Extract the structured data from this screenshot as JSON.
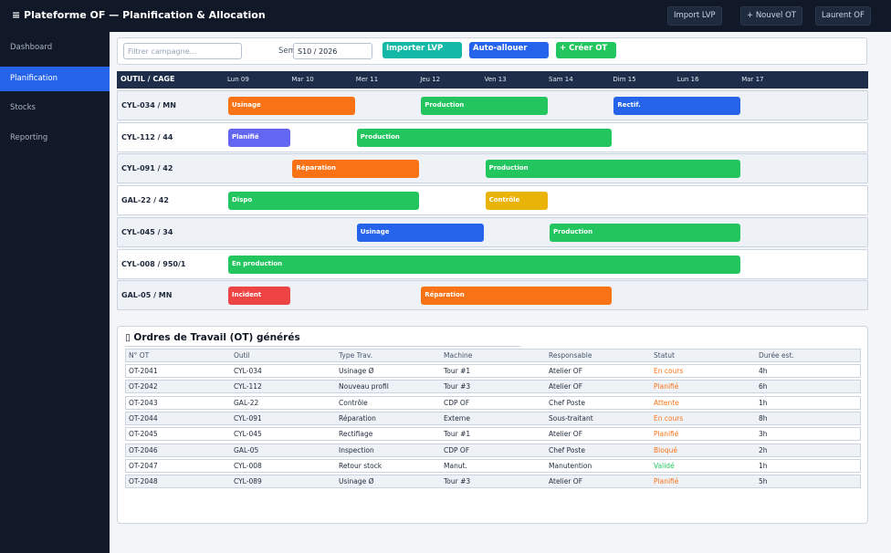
{
  "app": {
    "title": "≡  Plateforme OF  —  Planification & Allocation",
    "buttons": [
      "Import LVP",
      "+ Nouvel OT",
      "Laurent OF"
    ]
  },
  "sidebar": {
    "items": [
      {
        "label": "Dashboard",
        "active": false
      },
      {
        "label": "Planification",
        "active": true
      },
      {
        "label": "Stocks",
        "active": false
      },
      {
        "label": "Reporting",
        "active": false
      }
    ]
  },
  "toolbar": {
    "filter_placeholder": "Filtrer campagne...",
    "filter_value": "",
    "week_label": "Semaine:",
    "week_value": "S10 / 2026",
    "import_label": "Importer LVP",
    "auto_label": "Auto-allouer",
    "create_label": "+ Créer OT"
  },
  "gantt": {
    "header_label": "OUTIL / CAGE",
    "days": [
      "Lun 09",
      "Mar 10",
      "Mer 11",
      "Jeu 12",
      "Ven 13",
      "Sam 14",
      "Dim 15",
      "Lun 16",
      "Mar 17"
    ],
    "rows": [
      {
        "label": "CYL-034 / MN",
        "bars": [
          {
            "label": "Usinage",
            "start": 0,
            "span": 2,
            "color": "#f97316"
          },
          {
            "label": "Production",
            "start": 3,
            "span": 2,
            "color": "#22c55e"
          },
          {
            "label": "Rectif.",
            "start": 6,
            "span": 2,
            "color": "#2563eb"
          }
        ]
      },
      {
        "label": "CYL-112 / 44",
        "bars": [
          {
            "label": "Planifié",
            "start": 0,
            "span": 1,
            "color": "#6366f1"
          },
          {
            "label": "Production",
            "start": 2,
            "span": 4,
            "color": "#22c55e"
          }
        ]
      },
      {
        "label": "CYL-091 / 42",
        "bars": [
          {
            "label": "Réparation",
            "start": 1,
            "span": 2,
            "color": "#f97316"
          },
          {
            "label": "Production",
            "start": 4,
            "span": 4,
            "color": "#22c55e"
          }
        ]
      },
      {
        "label": "GAL-22 / 42",
        "bars": [
          {
            "label": "Dispo",
            "start": 0,
            "span": 3,
            "color": "#22c55e"
          },
          {
            "label": "Contrôle",
            "start": 4,
            "span": 1,
            "color": "#eab308"
          }
        ]
      },
      {
        "label": "CYL-045 / 34",
        "bars": [
          {
            "label": "Usinage",
            "start": 2,
            "span": 2,
            "color": "#2563eb"
          },
          {
            "label": "Production",
            "start": 5,
            "span": 3,
            "color": "#22c55e"
          }
        ]
      },
      {
        "label": "CYL-008 / 950/1",
        "bars": [
          {
            "label": "En production",
            "start": 0,
            "span": 8,
            "color": "#22c55e"
          }
        ]
      },
      {
        "label": "GAL-05 / MN",
        "bars": [
          {
            "label": "Incident",
            "start": 0,
            "span": 1,
            "color": "#ef4444"
          },
          {
            "label": "Réparation",
            "start": 3,
            "span": 3,
            "color": "#f97316"
          }
        ]
      }
    ]
  },
  "ot": {
    "title": "▯ Ordres de Travail (OT) générés",
    "columns": [
      "N° OT",
      "Outil",
      "Type Trav.",
      "Machine",
      "Responsable",
      "Statut",
      "Durée est."
    ],
    "rows": [
      {
        "id": "OT-2041",
        "outil": "CYL-034",
        "type": "Usinage Ø",
        "machine": "Tour #1",
        "resp": "Atelier OF",
        "statut": "En cours",
        "statut_color": "#f97316",
        "duree": "4h"
      },
      {
        "id": "OT-2042",
        "outil": "CYL-112",
        "type": "Nouveau profil",
        "machine": "Tour #3",
        "resp": "Atelier OF",
        "statut": "Planifié",
        "statut_color": "#f97316",
        "duree": "6h"
      },
      {
        "id": "OT-2043",
        "outil": "GAL-22",
        "type": "Contrôle",
        "machine": "CDP OF",
        "resp": "Chef Poste",
        "statut": "Attente",
        "statut_color": "#f97316",
        "duree": "1h"
      },
      {
        "id": "OT-2044",
        "outil": "CYL-091",
        "type": "Réparation",
        "machine": "Externe",
        "resp": "Sous-traitant",
        "statut": "En cours",
        "statut_color": "#f97316",
        "duree": "8h"
      },
      {
        "id": "OT-2045",
        "outil": "CYL-045",
        "type": "Rectifiage",
        "machine": "Tour #1",
        "resp": "Atelier OF",
        "statut": "Planifié",
        "statut_color": "#f97316",
        "duree": "3h"
      },
      {
        "id": "OT-2046",
        "outil": "GAL-05",
        "type": "Inspection",
        "machine": "CDP OF",
        "resp": "Chef Poste",
        "statut": "Bloqué",
        "statut_color": "#f97316",
        "duree": "2h"
      },
      {
        "id": "OT-2047",
        "outil": "CYL-008",
        "type": "Retour stock",
        "machine": "Manut.",
        "resp": "Manutention",
        "statut": "Validé",
        "statut_color": "#22c55e",
        "duree": "1h"
      },
      {
        "id": "OT-2048",
        "outil": "CYL-089",
        "type": "Usinage Ø",
        "machine": "Tour #3",
        "resp": "Atelier OF",
        "statut": "Planifié",
        "statut_color": "#f97316",
        "duree": "5h"
      }
    ]
  },
  "colors": {
    "brand": "#111827",
    "accent": "#2563eb",
    "import_btn": "#14b8a6",
    "auto_btn": "#2563eb",
    "create_btn": "#22c55e"
  }
}
